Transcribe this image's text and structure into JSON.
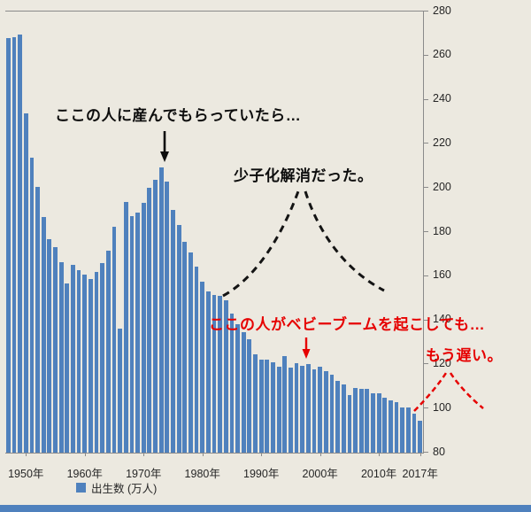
{
  "chart_data": {
    "type": "bar",
    "title": "",
    "xlabel": "",
    "ylabel": "",
    "legend_label": "出生数 (万人)",
    "legend_position": "bottom",
    "grid": false,
    "y_axis_side": "right",
    "ylim": [
      80,
      280
    ],
    "y_ticks": [
      280,
      260,
      240,
      220,
      200,
      180,
      160,
      140,
      120,
      100,
      80
    ],
    "x_ticks": [
      {
        "year": 1950,
        "label": "1950年"
      },
      {
        "year": 1960,
        "label": "1960年"
      },
      {
        "year": 1970,
        "label": "1970年"
      },
      {
        "year": 1980,
        "label": "1980年"
      },
      {
        "year": 1990,
        "label": "1990年"
      },
      {
        "year": 2000,
        "label": "2000年"
      },
      {
        "year": 2010,
        "label": "2010年"
      },
      {
        "year": 2017,
        "label": "2017年"
      }
    ],
    "start_year": 1947,
    "end_year": 2017,
    "bar_color": "#4f81bd",
    "values": [
      267.9,
      268.2,
      269.7,
      233.8,
      213.8,
      200.5,
      186.8,
      176.9,
      173.1,
      166.5,
      156.7,
      165.3,
      162.6,
      160.6,
      158.9,
      161.8,
      165.9,
      171.7,
      182.4,
      136.1,
      193.6,
      187.2,
      188.9,
      193.4,
      200.1,
      203.9,
      209.2,
      202.9,
      190.1,
      183.3,
      175.5,
      170.9,
      164.3,
      157.7,
      152.9,
      151.5,
      150.9,
      148.9,
      143.2,
      138.3,
      134.7,
      131.4,
      124.7,
      122.2,
      122.3,
      120.9,
      118.8,
      123.8,
      118.7,
      120.7,
      119.2,
      120.3,
      117.8,
      119.1,
      117.1,
      115.4,
      112.4,
      111.1,
      106.3,
      109.3,
      109.0,
      109.1,
      107.0,
      107.1,
      105.1,
      103.7,
      103.0,
      100.4,
      100.6,
      97.7,
      94.6
    ]
  },
  "annotations": {
    "if_they_had_children": "ここの人に産んでもらっていたら…",
    "decline_solved": "少子化解消だった。",
    "even_if_baby_boom": "ここの人がベビーブームを起こしても…",
    "too_late": "もう遅い。",
    "black_color": "#0d0d0d",
    "red_color": "#e60000"
  },
  "legend": {
    "label": "出生数 (万人)",
    "swatch_color": "#4f81bd"
  },
  "colors": {
    "background": "#ece9e0",
    "bar": "#4f81bd",
    "axis": "#8a8a8a",
    "bottom_strip": "#4f81bd"
  }
}
